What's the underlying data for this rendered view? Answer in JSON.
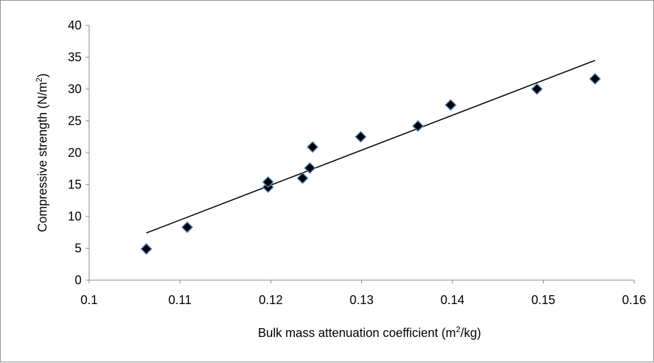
{
  "chart_data": {
    "type": "scatter",
    "xlabel_main": "Bulk mass attenuation coefficient (m",
    "xlabel_sup": "2",
    "xlabel_end": "/kg)",
    "ylabel_main": "Compressive strength (N/m",
    "ylabel_sup": "2",
    "ylabel_end": ")",
    "xlim": [
      0.1,
      0.16
    ],
    "ylim": [
      0,
      40
    ],
    "xticks": [
      0.1,
      0.11,
      0.12,
      0.13,
      0.14,
      0.15,
      0.16
    ],
    "xtick_labels": [
      "0.1",
      "0.11",
      "0.12",
      "0.13",
      "0.14",
      "0.15",
      "0.16"
    ],
    "yticks": [
      0,
      5,
      10,
      15,
      20,
      25,
      30,
      35,
      40
    ],
    "ytick_labels": [
      "0",
      "5",
      "10",
      "15",
      "20",
      "25",
      "30",
      "35",
      "40"
    ],
    "grid": false,
    "legend": "none",
    "marker_color": "#000000",
    "marker_edge_color": "#4f81bd",
    "trendline_color": "#000000",
    "points": [
      {
        "x": 0.1063,
        "y": 4.9
      },
      {
        "x": 0.1108,
        "y": 8.3
      },
      {
        "x": 0.1197,
        "y": 14.6
      },
      {
        "x": 0.1197,
        "y": 15.4
      },
      {
        "x": 0.1235,
        "y": 16.0
      },
      {
        "x": 0.1243,
        "y": 17.6
      },
      {
        "x": 0.1246,
        "y": 20.9
      },
      {
        "x": 0.1299,
        "y": 22.5
      },
      {
        "x": 0.1362,
        "y": 24.2
      },
      {
        "x": 0.1398,
        "y": 27.5
      },
      {
        "x": 0.1493,
        "y": 30.0
      },
      {
        "x": 0.1557,
        "y": 31.6
      }
    ],
    "trendline": [
      {
        "x": 0.1063,
        "y": 7.4
      },
      {
        "x": 0.1557,
        "y": 34.5
      }
    ]
  }
}
